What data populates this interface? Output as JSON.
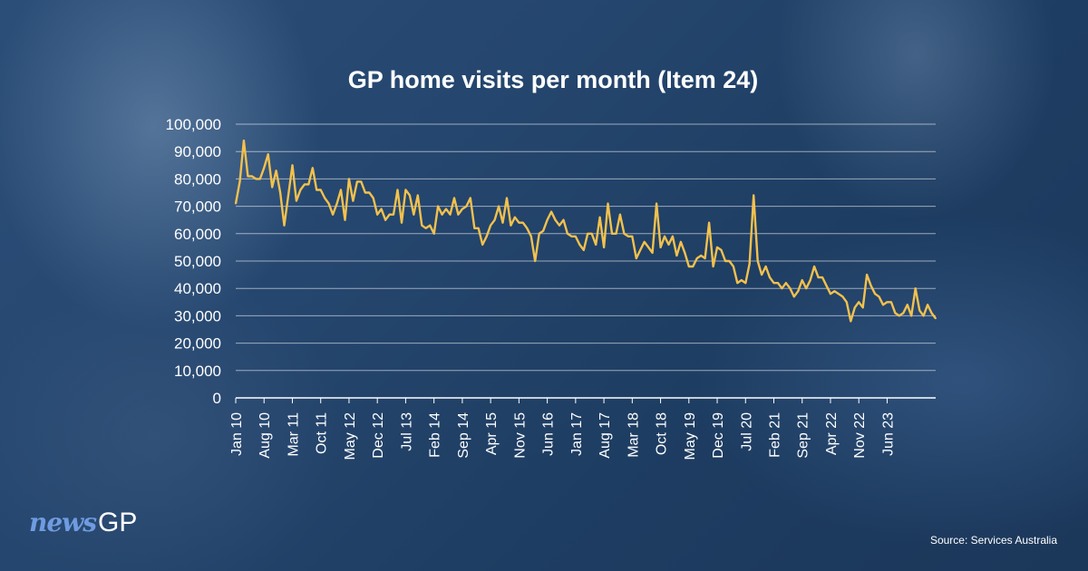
{
  "brand": {
    "logo_news": "news",
    "logo_gp": "GP"
  },
  "source_note": "Source: Services Australia",
  "colors": {
    "line": "#f2c14e",
    "text": "#ffffff",
    "background": "#1f3f66"
  },
  "chart_data": {
    "type": "line",
    "title": "GP home visits per month (Item 24)",
    "xlabel": "",
    "ylabel": "",
    "ylim": [
      0,
      100000
    ],
    "yticks": [
      0,
      10000,
      20000,
      30000,
      40000,
      50000,
      60000,
      70000,
      80000,
      90000,
      100000
    ],
    "ytick_labels": [
      "0",
      "10,000",
      "20,000",
      "30,000",
      "40,000",
      "50,000",
      "60,000",
      "70,000",
      "80,000",
      "90,000",
      "100,000"
    ],
    "xtick_labels": [
      "Jan 10",
      "Aug 10",
      "Mar 11",
      "Oct 11",
      "May 12",
      "Dec 12",
      "Jul 13",
      "Feb 14",
      "Sep 14",
      "Apr 15",
      "Nov 15",
      "Jun 16",
      "Jan 17",
      "Aug 17",
      "Mar 18",
      "Oct 18",
      "May 19",
      "Dec 19",
      "Jul 20",
      "Feb 21",
      "Sep 21",
      "Apr 22",
      "Nov 22",
      "Jun 23"
    ],
    "x_start": "Jan 10",
    "x_end": "Feb 24",
    "grid": true,
    "legend": "none",
    "series": [
      {
        "values": [
          71000,
          79000,
          94000,
          81000,
          81000,
          80000,
          80000,
          84000,
          89000,
          77000,
          83000,
          75000,
          63000,
          74000,
          85000,
          72000,
          76000,
          78000,
          78000,
          84000,
          76000,
          76000,
          73000,
          71000,
          67000,
          71000,
          76000,
          65000,
          80000,
          72000,
          79000,
          79000,
          75000,
          75000,
          73000,
          67000,
          69000,
          65000,
          67000,
          67000,
          76000,
          64000,
          76000,
          74000,
          67000,
          74000,
          63000,
          62000,
          63000,
          60000,
          70000,
          67000,
          69000,
          67000,
          73000,
          67000,
          69000,
          70000,
          73000,
          62000,
          62000,
          56000,
          59000,
          63000,
          65000,
          70000,
          64000,
          73000,
          63000,
          66000,
          64000,
          64000,
          62000,
          59000,
          50000,
          60000,
          61000,
          65000,
          68000,
          65000,
          63000,
          65000,
          60000,
          59000,
          59000,
          56000,
          54000,
          60000,
          60000,
          56000,
          66000,
          55000,
          71000,
          60000,
          60000,
          67000,
          60000,
          59000,
          59000,
          51000,
          54000,
          57000,
          55000,
          53000,
          71000,
          55000,
          59000,
          56000,
          59000,
          52000,
          57000,
          53000,
          48000,
          48000,
          51000,
          52000,
          51000,
          64000,
          48000,
          55000,
          54000,
          50000,
          50000,
          48000,
          42000,
          43000,
          42000,
          49000,
          74000,
          50000,
          45000,
          48000,
          44000,
          42000,
          42000,
          40000,
          42000,
          40000,
          37000,
          39000,
          43000,
          40000,
          43000,
          48000,
          44000,
          44000,
          41000,
          38000,
          39000,
          38000,
          37000,
          35000,
          28000,
          33000,
          35000,
          33000,
          45000,
          41000,
          38000,
          37000,
          34000,
          35000,
          35000,
          31000,
          30000,
          31000,
          34000,
          30000,
          40000,
          32000,
          30000,
          34000,
          31000,
          29000
        ]
      }
    ]
  }
}
